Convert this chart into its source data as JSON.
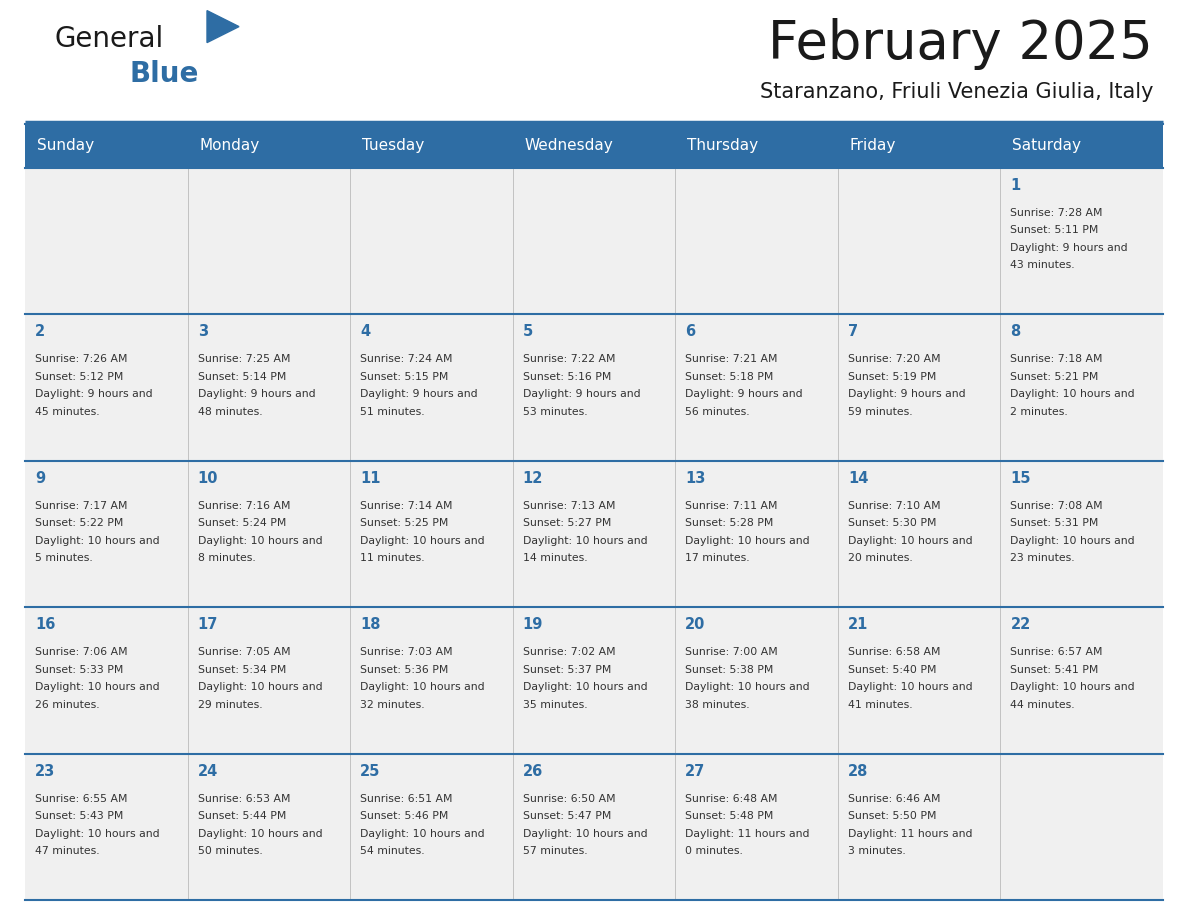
{
  "title": "February 2025",
  "subtitle": "Staranzano, Friuli Venezia Giulia, Italy",
  "header_bg": "#2E6DA4",
  "header_text_color": "#FFFFFF",
  "cell_bg": "#F0F0F0",
  "cell_bg_white": "#FFFFFF",
  "cell_border_color": "#2E6DA4",
  "day_headers": [
    "Sunday",
    "Monday",
    "Tuesday",
    "Wednesday",
    "Thursday",
    "Friday",
    "Saturday"
  ],
  "title_color": "#1a1a1a",
  "subtitle_color": "#1a1a1a",
  "day_number_color": "#2E6DA4",
  "cell_text_color": "#333333",
  "separator_color": "#2E6DA4",
  "days": [
    {
      "day": 1,
      "col": 6,
      "row": 0,
      "sunrise": "7:28 AM",
      "sunset": "5:11 PM",
      "daylight": "9 hours and 43 minutes."
    },
    {
      "day": 2,
      "col": 0,
      "row": 1,
      "sunrise": "7:26 AM",
      "sunset": "5:12 PM",
      "daylight": "9 hours and 45 minutes."
    },
    {
      "day": 3,
      "col": 1,
      "row": 1,
      "sunrise": "7:25 AM",
      "sunset": "5:14 PM",
      "daylight": "9 hours and 48 minutes."
    },
    {
      "day": 4,
      "col": 2,
      "row": 1,
      "sunrise": "7:24 AM",
      "sunset": "5:15 PM",
      "daylight": "9 hours and 51 minutes."
    },
    {
      "day": 5,
      "col": 3,
      "row": 1,
      "sunrise": "7:22 AM",
      "sunset": "5:16 PM",
      "daylight": "9 hours and 53 minutes."
    },
    {
      "day": 6,
      "col": 4,
      "row": 1,
      "sunrise": "7:21 AM",
      "sunset": "5:18 PM",
      "daylight": "9 hours and 56 minutes."
    },
    {
      "day": 7,
      "col": 5,
      "row": 1,
      "sunrise": "7:20 AM",
      "sunset": "5:19 PM",
      "daylight": "9 hours and 59 minutes."
    },
    {
      "day": 8,
      "col": 6,
      "row": 1,
      "sunrise": "7:18 AM",
      "sunset": "5:21 PM",
      "daylight": "10 hours and 2 minutes."
    },
    {
      "day": 9,
      "col": 0,
      "row": 2,
      "sunrise": "7:17 AM",
      "sunset": "5:22 PM",
      "daylight": "10 hours and 5 minutes."
    },
    {
      "day": 10,
      "col": 1,
      "row": 2,
      "sunrise": "7:16 AM",
      "sunset": "5:24 PM",
      "daylight": "10 hours and 8 minutes."
    },
    {
      "day": 11,
      "col": 2,
      "row": 2,
      "sunrise": "7:14 AM",
      "sunset": "5:25 PM",
      "daylight": "10 hours and 11 minutes."
    },
    {
      "day": 12,
      "col": 3,
      "row": 2,
      "sunrise": "7:13 AM",
      "sunset": "5:27 PM",
      "daylight": "10 hours and 14 minutes."
    },
    {
      "day": 13,
      "col": 4,
      "row": 2,
      "sunrise": "7:11 AM",
      "sunset": "5:28 PM",
      "daylight": "10 hours and 17 minutes."
    },
    {
      "day": 14,
      "col": 5,
      "row": 2,
      "sunrise": "7:10 AM",
      "sunset": "5:30 PM",
      "daylight": "10 hours and 20 minutes."
    },
    {
      "day": 15,
      "col": 6,
      "row": 2,
      "sunrise": "7:08 AM",
      "sunset": "5:31 PM",
      "daylight": "10 hours and 23 minutes."
    },
    {
      "day": 16,
      "col": 0,
      "row": 3,
      "sunrise": "7:06 AM",
      "sunset": "5:33 PM",
      "daylight": "10 hours and 26 minutes."
    },
    {
      "day": 17,
      "col": 1,
      "row": 3,
      "sunrise": "7:05 AM",
      "sunset": "5:34 PM",
      "daylight": "10 hours and 29 minutes."
    },
    {
      "day": 18,
      "col": 2,
      "row": 3,
      "sunrise": "7:03 AM",
      "sunset": "5:36 PM",
      "daylight": "10 hours and 32 minutes."
    },
    {
      "day": 19,
      "col": 3,
      "row": 3,
      "sunrise": "7:02 AM",
      "sunset": "5:37 PM",
      "daylight": "10 hours and 35 minutes."
    },
    {
      "day": 20,
      "col": 4,
      "row": 3,
      "sunrise": "7:00 AM",
      "sunset": "5:38 PM",
      "daylight": "10 hours and 38 minutes."
    },
    {
      "day": 21,
      "col": 5,
      "row": 3,
      "sunrise": "6:58 AM",
      "sunset": "5:40 PM",
      "daylight": "10 hours and 41 minutes."
    },
    {
      "day": 22,
      "col": 6,
      "row": 3,
      "sunrise": "6:57 AM",
      "sunset": "5:41 PM",
      "daylight": "10 hours and 44 minutes."
    },
    {
      "day": 23,
      "col": 0,
      "row": 4,
      "sunrise": "6:55 AM",
      "sunset": "5:43 PM",
      "daylight": "10 hours and 47 minutes."
    },
    {
      "day": 24,
      "col": 1,
      "row": 4,
      "sunrise": "6:53 AM",
      "sunset": "5:44 PM",
      "daylight": "10 hours and 50 minutes."
    },
    {
      "day": 25,
      "col": 2,
      "row": 4,
      "sunrise": "6:51 AM",
      "sunset": "5:46 PM",
      "daylight": "10 hours and 54 minutes."
    },
    {
      "day": 26,
      "col": 3,
      "row": 4,
      "sunrise": "6:50 AM",
      "sunset": "5:47 PM",
      "daylight": "10 hours and 57 minutes."
    },
    {
      "day": 27,
      "col": 4,
      "row": 4,
      "sunrise": "6:48 AM",
      "sunset": "5:48 PM",
      "daylight": "11 hours and 0 minutes."
    },
    {
      "day": 28,
      "col": 5,
      "row": 4,
      "sunrise": "6:46 AM",
      "sunset": "5:50 PM",
      "daylight": "11 hours and 3 minutes."
    }
  ],
  "logo_text_general": "General",
  "logo_text_blue": "Blue",
  "logo_color_general": "#1a1a1a",
  "logo_color_blue": "#2E6DA4",
  "logo_triangle_color": "#2E6DA4",
  "figsize": [
    11.88,
    9.18
  ],
  "dpi": 100
}
